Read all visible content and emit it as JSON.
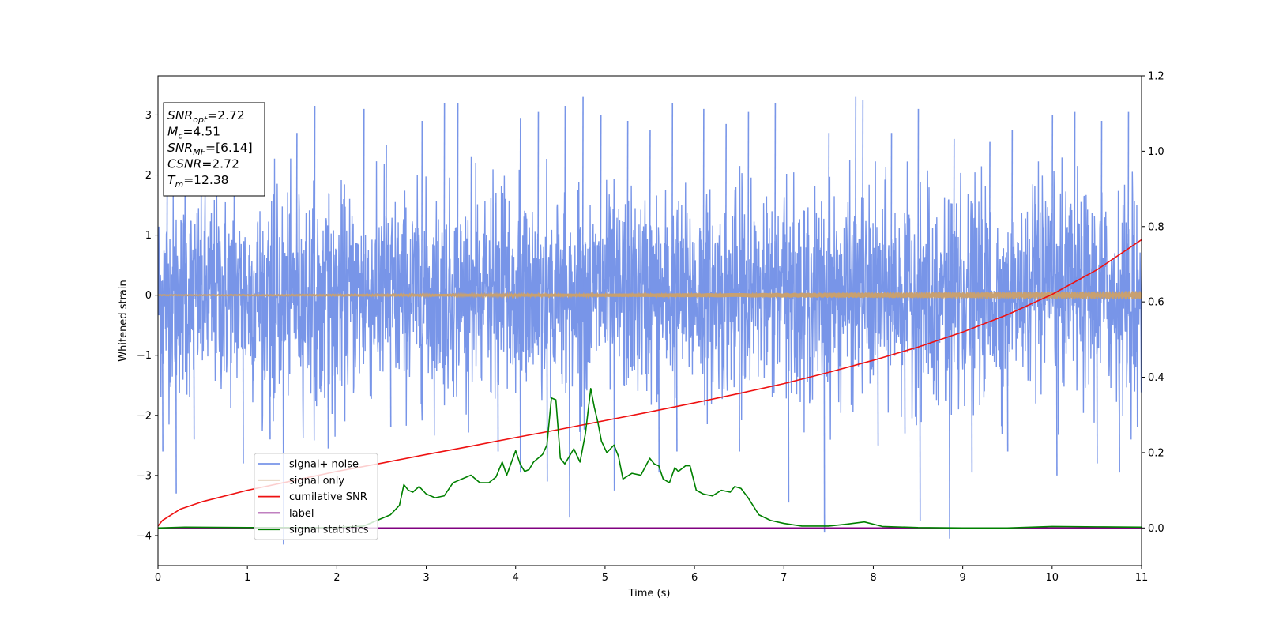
{
  "chart_data": {
    "type": "line",
    "xlabel": "Time (s)",
    "ylabel": "Whitened strain",
    "xlim": [
      0,
      11
    ],
    "ylim": [
      -4.5,
      3.65
    ],
    "y2lim": [
      -0.1,
      1.2
    ],
    "x_ticks": [
      0,
      1,
      2,
      3,
      4,
      5,
      6,
      7,
      8,
      9,
      10,
      11
    ],
    "y_ticks": [
      -4,
      -3,
      -2,
      -1,
      0,
      1,
      2,
      3
    ],
    "y2_ticks": [
      0.0,
      0.2,
      0.4,
      0.6,
      0.8,
      1.0,
      1.2
    ],
    "colors": {
      "signal_noise": "#7895e8",
      "signal_only": "#c8a070",
      "cumulative_snr": "#ee1111",
      "label": "#800080",
      "signal_statistics": "#008000"
    },
    "info_box": [
      {
        "base": "SNR",
        "sub": "opt",
        "value": "=2.72"
      },
      {
        "base": "M",
        "sub": "c",
        "value": "=4.51"
      },
      {
        "base": "SNR",
        "sub": "MF",
        "value": "=[6.14]"
      },
      {
        "base": "CSNR",
        "sub": "",
        "value": "=2.72"
      },
      {
        "base": "T",
        "sub": "m",
        "value": "=12.38"
      }
    ],
    "legend": {
      "placement": "lower-left",
      "entries": [
        "signal+ noise",
        "signal only",
        "cumilative SNR",
        "label",
        "signal statistics"
      ]
    },
    "series": [
      {
        "name": "signal+ noise",
        "axis": "left",
        "description_values": "dense whitened noise, approx Gaussian, envelope about -2.6 to 2.4 with spikes to +3.3 and -4.15",
        "spikes_up": [
          [
            0.1,
            2.5
          ],
          [
            0.3,
            2.2
          ],
          [
            0.85,
            2.6
          ],
          [
            1.55,
            2.7
          ],
          [
            1.75,
            3.15
          ],
          [
            2.3,
            3.1
          ],
          [
            2.55,
            2.5
          ],
          [
            2.95,
            2.9
          ],
          [
            3.2,
            3.2
          ],
          [
            3.35,
            3.2
          ],
          [
            3.5,
            2.3
          ],
          [
            4.05,
            2.95
          ],
          [
            4.25,
            3.05
          ],
          [
            4.55,
            3.15
          ],
          [
            4.75,
            3.3
          ],
          [
            4.95,
            3.0
          ],
          [
            5.25,
            2.9
          ],
          [
            5.5,
            2.75
          ],
          [
            5.75,
            3.2
          ],
          [
            6.1,
            3.1
          ],
          [
            6.35,
            2.85
          ],
          [
            6.6,
            3.05
          ],
          [
            6.9,
            3.2
          ],
          [
            7.5,
            2.7
          ],
          [
            7.8,
            3.3
          ],
          [
            7.88,
            3.25
          ],
          [
            8.2,
            2.7
          ],
          [
            8.5,
            3.1
          ],
          [
            8.9,
            2.6
          ],
          [
            9.3,
            2.55
          ],
          [
            9.55,
            2.75
          ],
          [
            10.0,
            3.0
          ],
          [
            10.25,
            3.05
          ],
          [
            10.55,
            2.9
          ],
          [
            10.85,
            3.05
          ]
        ],
        "spikes_down": [
          [
            0.05,
            -2.6
          ],
          [
            0.2,
            -3.3
          ],
          [
            0.4,
            -2.4
          ],
          [
            0.95,
            -2.8
          ],
          [
            1.25,
            -2.4
          ],
          [
            1.4,
            -4.15
          ],
          [
            1.9,
            -2.55
          ],
          [
            2.6,
            -2.2
          ],
          [
            3.8,
            -2.6
          ],
          [
            4.05,
            -2.95
          ],
          [
            4.35,
            -3.1
          ],
          [
            4.6,
            -3.7
          ],
          [
            5.1,
            -3.25
          ],
          [
            5.6,
            -2.95
          ],
          [
            5.8,
            -2.6
          ],
          [
            6.5,
            -2.6
          ],
          [
            7.05,
            -3.45
          ],
          [
            7.45,
            -3.95
          ],
          [
            8.05,
            -2.5
          ],
          [
            8.35,
            -2.3
          ],
          [
            8.52,
            -3.75
          ],
          [
            8.85,
            -4.05
          ],
          [
            9.1,
            -2.95
          ],
          [
            9.5,
            -2.6
          ],
          [
            10.05,
            -3.0
          ],
          [
            10.5,
            -2.8
          ],
          [
            10.75,
            -2.95
          ],
          [
            10.95,
            -2.2
          ]
        ]
      },
      {
        "name": "signal only",
        "axis": "left",
        "description_values": "chirp with amplitude growing from about 0.01 at t=0 to about 0.07 at t=11",
        "amplitude_start": 0.01,
        "amplitude_end": 0.07
      },
      {
        "name": "cumilative SNR",
        "axis": "right",
        "x": [
          0,
          0.05,
          0.25,
          0.5,
          1.0,
          1.5,
          2.0,
          2.5,
          3.0,
          3.5,
          4.0,
          4.5,
          5.0,
          5.5,
          6.0,
          6.5,
          7.0,
          7.5,
          8.0,
          8.5,
          9.0,
          9.5,
          10.0,
          10.5,
          11.0
        ],
        "values": [
          0.005,
          0.02,
          0.05,
          0.07,
          0.1,
          0.125,
          0.15,
          0.172,
          0.195,
          0.217,
          0.24,
          0.262,
          0.285,
          0.308,
          0.332,
          0.357,
          0.383,
          0.413,
          0.445,
          0.48,
          0.52,
          0.566,
          0.62,
          0.685,
          0.765
        ]
      },
      {
        "name": "label",
        "axis": "right",
        "x": [
          0,
          11
        ],
        "values": [
          0.0,
          0.0
        ]
      },
      {
        "name": "signal statistics",
        "axis": "right",
        "x": [
          0,
          0.3,
          1.0,
          2.0,
          2.3,
          2.45,
          2.6,
          2.7,
          2.75,
          2.8,
          2.85,
          2.92,
          3.0,
          3.1,
          3.2,
          3.3,
          3.35,
          3.5,
          3.6,
          3.7,
          3.78,
          3.85,
          3.9,
          4.0,
          4.05,
          4.1,
          4.15,
          4.2,
          4.3,
          4.35,
          4.4,
          4.45,
          4.5,
          4.55,
          4.65,
          4.72,
          4.78,
          4.84,
          4.88,
          4.92,
          4.96,
          5.02,
          5.1,
          5.15,
          5.2,
          5.3,
          5.4,
          5.5,
          5.55,
          5.6,
          5.65,
          5.72,
          5.78,
          5.82,
          5.9,
          5.95,
          6.02,
          6.1,
          6.2,
          6.3,
          6.4,
          6.45,
          6.52,
          6.6,
          6.72,
          6.85,
          7.0,
          7.2,
          7.5,
          7.7,
          7.9,
          8.1,
          8.5,
          9.0,
          9.5,
          10.0,
          10.5,
          11.0
        ],
        "values": [
          0.0,
          0.002,
          0.001,
          0.001,
          0.005,
          0.02,
          0.035,
          0.06,
          0.115,
          0.1,
          0.095,
          0.11,
          0.09,
          0.08,
          0.085,
          0.12,
          0.125,
          0.14,
          0.12,
          0.12,
          0.135,
          0.175,
          0.14,
          0.205,
          0.17,
          0.15,
          0.155,
          0.175,
          0.195,
          0.22,
          0.345,
          0.34,
          0.185,
          0.17,
          0.21,
          0.175,
          0.25,
          0.37,
          0.32,
          0.28,
          0.23,
          0.2,
          0.22,
          0.19,
          0.13,
          0.145,
          0.14,
          0.185,
          0.17,
          0.165,
          0.13,
          0.12,
          0.16,
          0.15,
          0.165,
          0.165,
          0.1,
          0.09,
          0.085,
          0.1,
          0.095,
          0.11,
          0.105,
          0.08,
          0.035,
          0.02,
          0.012,
          0.005,
          0.005,
          0.01,
          0.016,
          0.004,
          0.001,
          0.0,
          0.0,
          0.004,
          0.003,
          0.002
        ]
      }
    ]
  }
}
